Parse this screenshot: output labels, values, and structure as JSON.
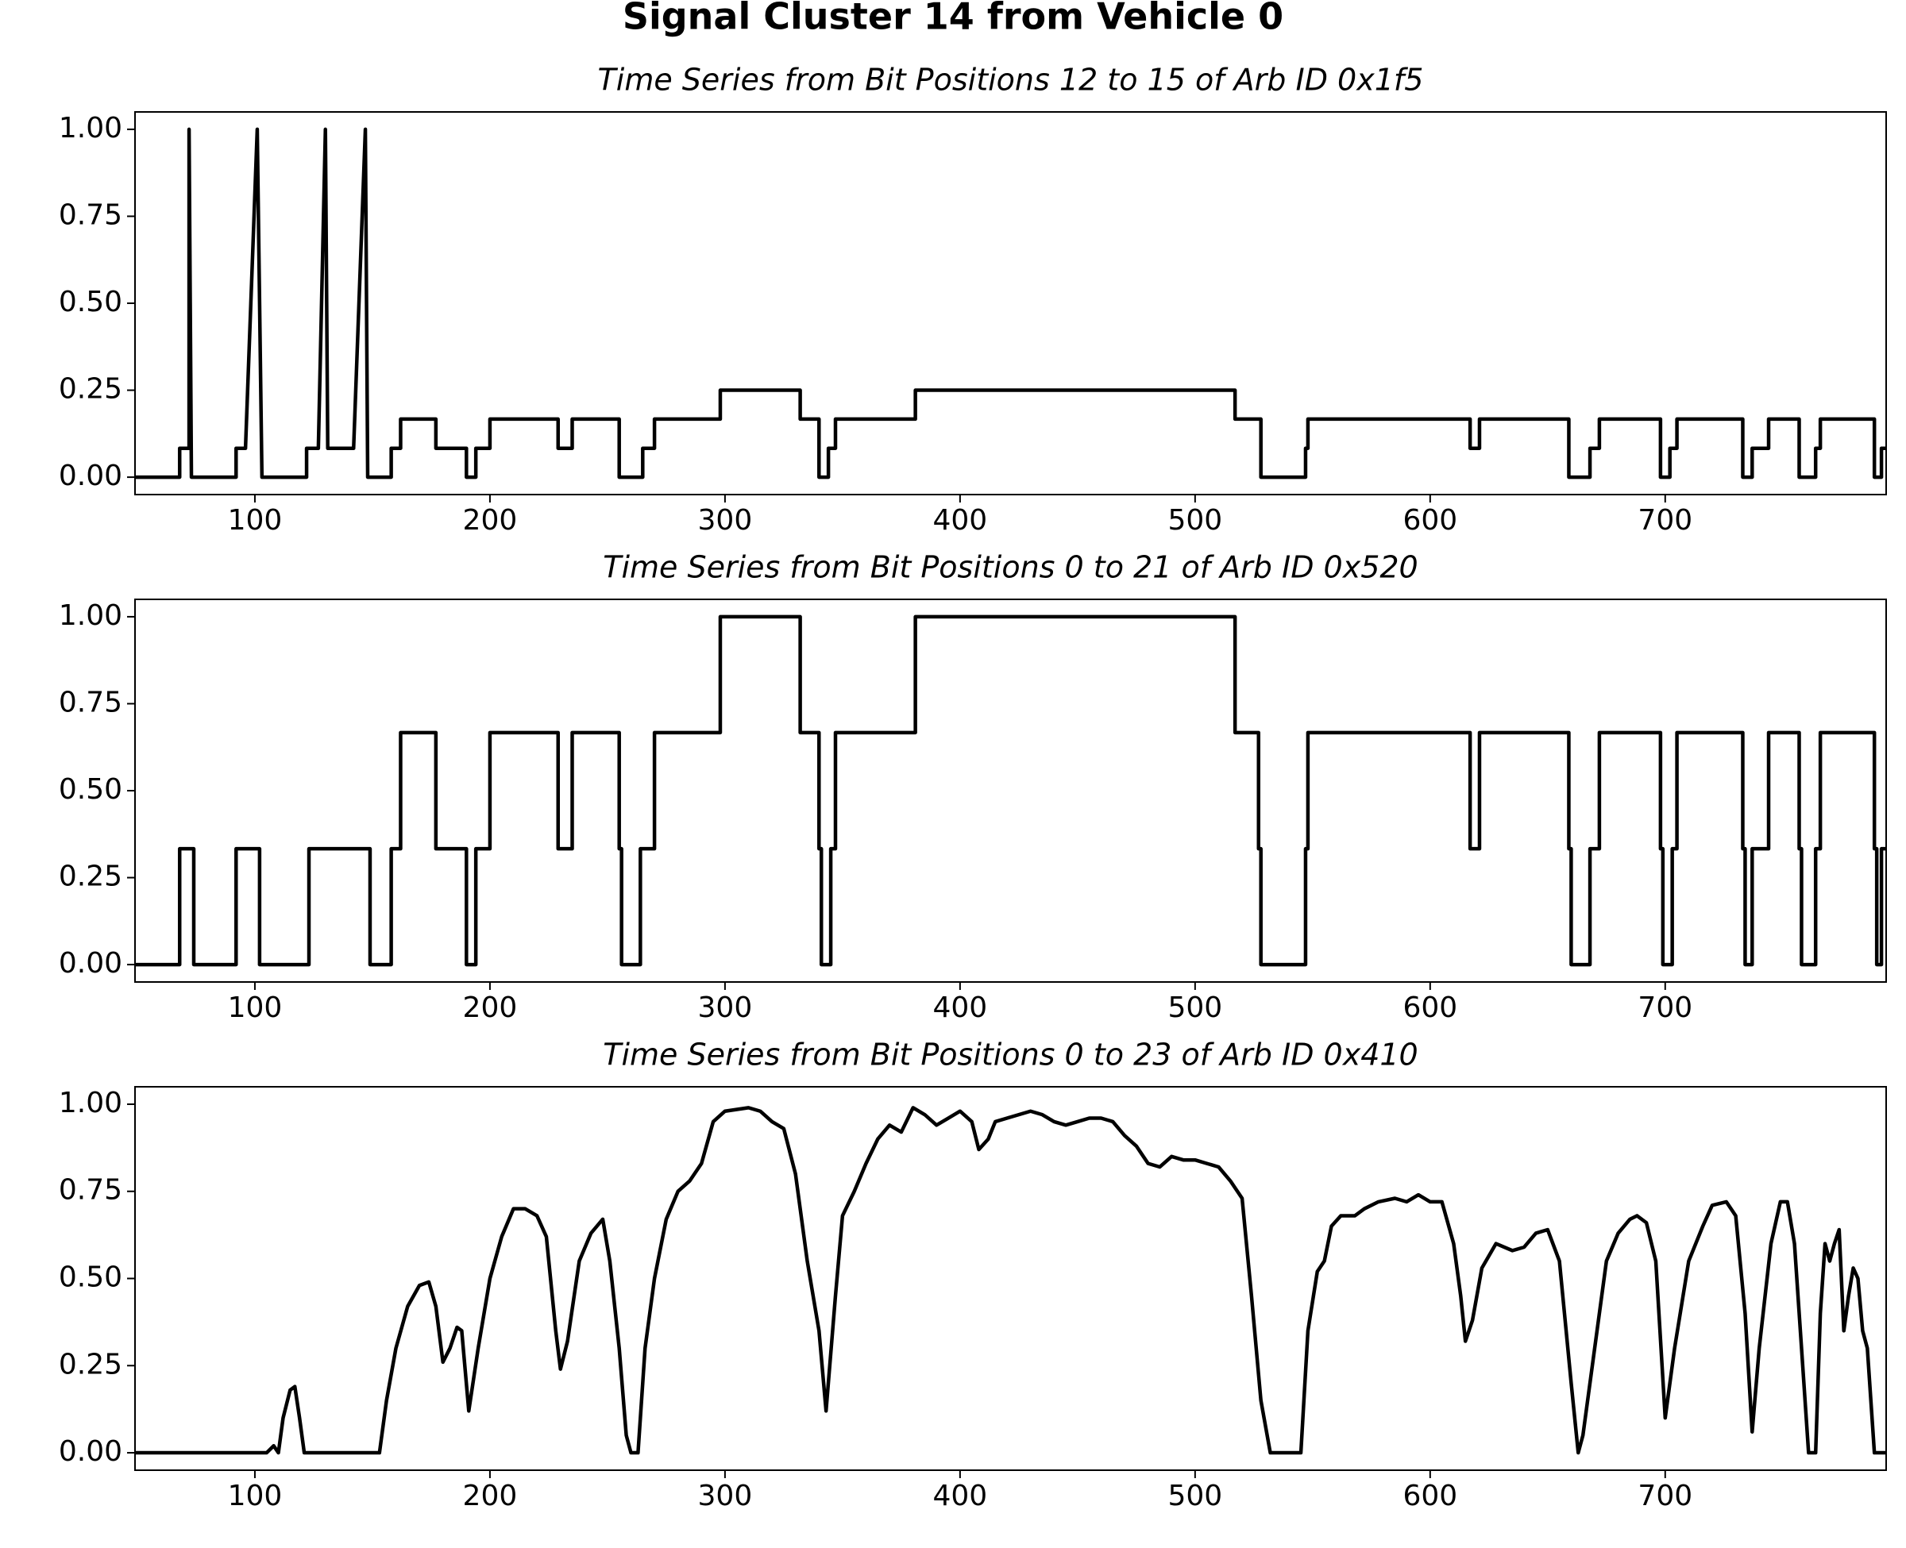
{
  "title": "Signal Cluster 14 from Vehicle 0",
  "chart_data": [
    {
      "type": "line",
      "title": "Time Series from Bit Positions 12 to 15 of Arb ID 0x1f5",
      "color": "#000000",
      "xlim": [
        49,
        794
      ],
      "ylim": [
        -0.05,
        1.05
      ],
      "xticks": [
        100,
        200,
        300,
        400,
        500,
        600,
        700
      ],
      "yticks": [
        {
          "value": 0,
          "label": "0.00"
        },
        {
          "value": 0.25,
          "label": "0.25"
        },
        {
          "value": 0.5,
          "label": "0.50"
        },
        {
          "value": 0.75,
          "label": "0.75"
        },
        {
          "value": 1,
          "label": "1.00"
        }
      ],
      "x": [
        49,
        68,
        68,
        72,
        72,
        73,
        92,
        92,
        96,
        101,
        103,
        122,
        122,
        127,
        130,
        131,
        142,
        147,
        148,
        158,
        158,
        162,
        162,
        177,
        177,
        190,
        190,
        194,
        194,
        200,
        200,
        229,
        229,
        235,
        235,
        255,
        255,
        265,
        265,
        270,
        270,
        298,
        298,
        332,
        332,
        340,
        340,
        344,
        344,
        347,
        347,
        381,
        381,
        517,
        517,
        528,
        528,
        547,
        547,
        548,
        548,
        617,
        617,
        621,
        621,
        659,
        659,
        668,
        668,
        672,
        672,
        698,
        698,
        702,
        702,
        705,
        705,
        733,
        733,
        737,
        737,
        744,
        744,
        757,
        757,
        764,
        764,
        766,
        766,
        789,
        789,
        792,
        792,
        794
      ],
      "values": [
        0,
        0,
        0.083,
        0.083,
        1,
        0,
        0,
        0.083,
        0.083,
        1,
        0,
        0,
        0.083,
        0.083,
        1,
        0.083,
        0.083,
        1,
        0,
        0,
        0.083,
        0.083,
        0.167,
        0.167,
        0.083,
        0.083,
        0,
        0,
        0.083,
        0.083,
        0.167,
        0.167,
        0.083,
        0.083,
        0.167,
        0.167,
        0,
        0,
        0.083,
        0.083,
        0.167,
        0.167,
        0.25,
        0.25,
        0.167,
        0.167,
        0,
        0,
        0.083,
        0.083,
        0.167,
        0.167,
        0.25,
        0.25,
        0.167,
        0.167,
        0,
        0,
        0.083,
        0.083,
        0.167,
        0.167,
        0.083,
        0.083,
        0.167,
        0.167,
        0,
        0,
        0.083,
        0.083,
        0.167,
        0.167,
        0,
        0,
        0.083,
        0.083,
        0.167,
        0.167,
        0,
        0,
        0.083,
        0.083,
        0.167,
        0.167,
        0,
        0,
        0.083,
        0.083,
        0.167,
        0.167,
        0,
        0,
        0.083,
        0.083
      ]
    },
    {
      "type": "line",
      "title": "Time Series from Bit Positions 0 to 21 of Arb ID 0x520",
      "color": "#000000",
      "xlim": [
        49,
        794
      ],
      "ylim": [
        -0.05,
        1.05
      ],
      "xticks": [
        100,
        200,
        300,
        400,
        500,
        600,
        700
      ],
      "yticks": [
        {
          "value": 0,
          "label": "0.00"
        },
        {
          "value": 0.25,
          "label": "0.25"
        },
        {
          "value": 0.5,
          "label": "0.50"
        },
        {
          "value": 0.75,
          "label": "0.75"
        },
        {
          "value": 1,
          "label": "1.00"
        }
      ],
      "x": [
        49,
        68,
        68,
        74,
        74,
        92,
        92,
        102,
        102,
        123,
        123,
        149,
        149,
        158,
        158,
        162,
        162,
        177,
        177,
        190,
        190,
        194,
        194,
        200,
        200,
        229,
        229,
        235,
        235,
        255,
        255,
        256,
        256,
        264,
        264,
        270,
        270,
        298,
        298,
        332,
        332,
        340,
        340,
        341,
        341,
        345,
        345,
        347,
        347,
        381,
        381,
        517,
        517,
        527,
        527,
        528,
        528,
        547,
        547,
        548,
        548,
        617,
        617,
        621,
        621,
        659,
        659,
        660,
        660,
        668,
        668,
        672,
        672,
        698,
        698,
        699,
        699,
        703,
        703,
        705,
        705,
        733,
        733,
        734,
        734,
        737,
        737,
        744,
        744,
        757,
        757,
        758,
        758,
        764,
        764,
        766,
        766,
        789,
        789,
        790,
        790,
        792,
        792,
        794
      ],
      "values": [
        0,
        0,
        0.333,
        0.333,
        0,
        0,
        0.333,
        0.333,
        0,
        0,
        0.333,
        0.333,
        0,
        0,
        0.333,
        0.333,
        0.667,
        0.667,
        0.333,
        0.333,
        0,
        0,
        0.333,
        0.333,
        0.667,
        0.667,
        0.333,
        0.333,
        0.667,
        0.667,
        0.333,
        0.333,
        0,
        0,
        0.333,
        0.333,
        0.667,
        0.667,
        1,
        1,
        0.667,
        0.667,
        0.333,
        0.333,
        0,
        0,
        0.333,
        0.333,
        0.667,
        0.667,
        1,
        1,
        0.667,
        0.667,
        0.333,
        0.333,
        0,
        0,
        0.333,
        0.333,
        0.667,
        0.667,
        0.333,
        0.333,
        0.667,
        0.667,
        0.333,
        0.333,
        0,
        0,
        0.333,
        0.333,
        0.667,
        0.667,
        0.333,
        0.333,
        0,
        0,
        0.333,
        0.333,
        0.667,
        0.667,
        0.333,
        0.333,
        0,
        0,
        0.333,
        0.333,
        0.667,
        0.667,
        0.333,
        0.333,
        0,
        0,
        0.333,
        0.333,
        0.667,
        0.667,
        0.333,
        0.333,
        0,
        0,
        0.333,
        0.333
      ]
    },
    {
      "type": "line",
      "title": "Time Series from Bit Positions 0 to 23 of Arb ID 0x410",
      "color": "#000000",
      "xlim": [
        49,
        794
      ],
      "ylim": [
        -0.05,
        1.05
      ],
      "xticks": [
        100,
        200,
        300,
        400,
        500,
        600,
        700
      ],
      "yticks": [
        {
          "value": 0,
          "label": "0.00"
        },
        {
          "value": 0.25,
          "label": "0.25"
        },
        {
          "value": 0.5,
          "label": "0.50"
        },
        {
          "value": 0.75,
          "label": "0.75"
        },
        {
          "value": 1,
          "label": "1.00"
        }
      ],
      "x": [
        49,
        105,
        108,
        110,
        112,
        115,
        117,
        119,
        121,
        153,
        156,
        160,
        165,
        170,
        174,
        177,
        180,
        183,
        186,
        188,
        191,
        195,
        200,
        205,
        210,
        215,
        220,
        224,
        228,
        230,
        233,
        238,
        243,
        248,
        251,
        255,
        258,
        260,
        263,
        266,
        270,
        275,
        280,
        285,
        290,
        295,
        300,
        310,
        315,
        320,
        325,
        330,
        335,
        340,
        343,
        347,
        350,
        355,
        360,
        365,
        370,
        375,
        380,
        385,
        390,
        395,
        400,
        405,
        408,
        412,
        415,
        420,
        425,
        430,
        435,
        440,
        445,
        450,
        455,
        460,
        465,
        470,
        475,
        480,
        485,
        490,
        495,
        500,
        505,
        510,
        515,
        520,
        524,
        528,
        532,
        545,
        548,
        552,
        555,
        558,
        562,
        568,
        572,
        578,
        585,
        590,
        595,
        600,
        605,
        610,
        613,
        615,
        618,
        622,
        628,
        635,
        640,
        645,
        650,
        655,
        660,
        663,
        665,
        670,
        675,
        680,
        685,
        688,
        692,
        696,
        700,
        704,
        710,
        716,
        720,
        726,
        730,
        734,
        737,
        740,
        745,
        749,
        752,
        755,
        759,
        761,
        764,
        766,
        768,
        770,
        772,
        774,
        776,
        778,
        780,
        782,
        784,
        786,
        789,
        794
      ],
      "values": [
        0,
        0,
        0.02,
        0,
        0.1,
        0.18,
        0.19,
        0.1,
        0,
        0,
        0.15,
        0.3,
        0.42,
        0.48,
        0.49,
        0.42,
        0.26,
        0.3,
        0.36,
        0.35,
        0.12,
        0.3,
        0.5,
        0.62,
        0.7,
        0.7,
        0.68,
        0.62,
        0.35,
        0.24,
        0.32,
        0.55,
        0.63,
        0.67,
        0.55,
        0.3,
        0.05,
        0,
        0,
        0.3,
        0.5,
        0.67,
        0.75,
        0.78,
        0.83,
        0.95,
        0.98,
        0.99,
        0.98,
        0.95,
        0.93,
        0.8,
        0.55,
        0.35,
        0.12,
        0.45,
        0.68,
        0.75,
        0.83,
        0.9,
        0.94,
        0.92,
        0.99,
        0.97,
        0.94,
        0.96,
        0.98,
        0.95,
        0.87,
        0.9,
        0.95,
        0.96,
        0.97,
        0.98,
        0.97,
        0.95,
        0.94,
        0.95,
        0.96,
        0.96,
        0.95,
        0.91,
        0.88,
        0.83,
        0.82,
        0.85,
        0.84,
        0.84,
        0.83,
        0.82,
        0.78,
        0.73,
        0.45,
        0.15,
        0,
        0,
        0.35,
        0.52,
        0.55,
        0.65,
        0.68,
        0.68,
        0.7,
        0.72,
        0.73,
        0.72,
        0.74,
        0.72,
        0.72,
        0.6,
        0.45,
        0.32,
        0.38,
        0.53,
        0.6,
        0.58,
        0.59,
        0.63,
        0.64,
        0.55,
        0.2,
        0,
        0.05,
        0.3,
        0.55,
        0.63,
        0.67,
        0.68,
        0.66,
        0.55,
        0.1,
        0.3,
        0.55,
        0.65,
        0.71,
        0.72,
        0.68,
        0.4,
        0.06,
        0.3,
        0.6,
        0.72,
        0.72,
        0.6,
        0.2,
        0,
        0,
        0.4,
        0.6,
        0.55,
        0.6,
        0.64,
        0.35,
        0.45,
        0.53,
        0.5,
        0.35,
        0.3,
        0,
        0
      ]
    }
  ]
}
